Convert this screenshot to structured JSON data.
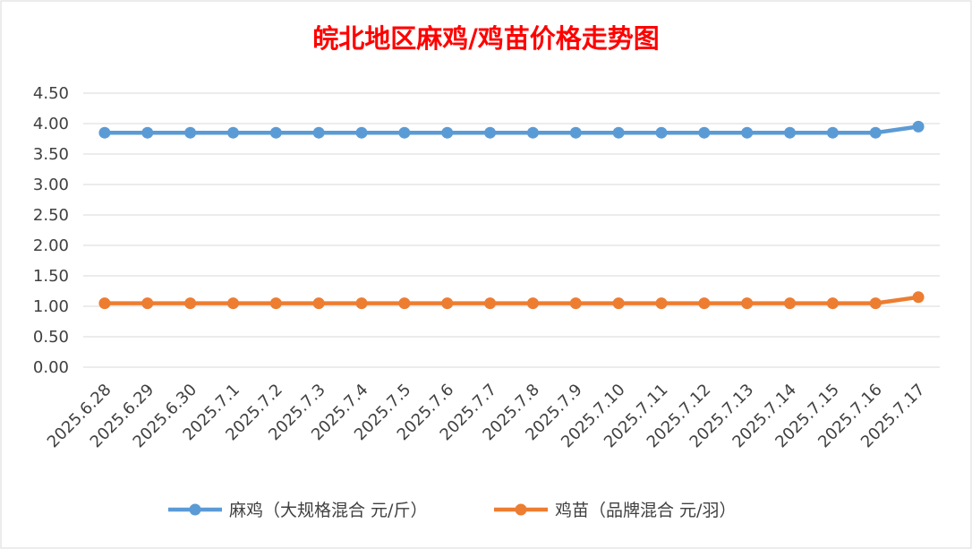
{
  "chart_data": {
    "type": "line",
    "title": "皖北地区麻鸡/鸡苗价格走势图",
    "xlabel": "",
    "ylabel": "",
    "ylim": [
      0,
      4.5
    ],
    "yticks": [
      "0.00",
      "0.50",
      "1.00",
      "1.50",
      "2.00",
      "2.50",
      "3.00",
      "3.50",
      "4.00",
      "4.50"
    ],
    "categories": [
      "2025.6.28",
      "2025.6.29",
      "2025.6.30",
      "2025.7.1",
      "2025.7.2",
      "2025.7.3",
      "2025.7.4",
      "2025.7.5",
      "2025.7.6",
      "2025.7.7",
      "2025.7.8",
      "2025.7.9",
      "2025.7.10",
      "2025.7.11",
      "2025.7.12",
      "2025.7.13",
      "2025.7.14",
      "2025.7.15",
      "2025.7.16",
      "2025.7.17"
    ],
    "series": [
      {
        "name": "麻鸡（大规格混合 元/斤）",
        "color": "#5b9bd5",
        "values": [
          3.85,
          3.85,
          3.85,
          3.85,
          3.85,
          3.85,
          3.85,
          3.85,
          3.85,
          3.85,
          3.85,
          3.85,
          3.85,
          3.85,
          3.85,
          3.85,
          3.85,
          3.85,
          3.85,
          3.95
        ]
      },
      {
        "name": "鸡苗（品牌混合 元/羽）",
        "color": "#ed7d31",
        "values": [
          1.05,
          1.05,
          1.05,
          1.05,
          1.05,
          1.05,
          1.05,
          1.05,
          1.05,
          1.05,
          1.05,
          1.05,
          1.05,
          1.05,
          1.05,
          1.05,
          1.05,
          1.05,
          1.05,
          1.15
        ]
      }
    ],
    "grid": true,
    "legend_position": "bottom"
  }
}
